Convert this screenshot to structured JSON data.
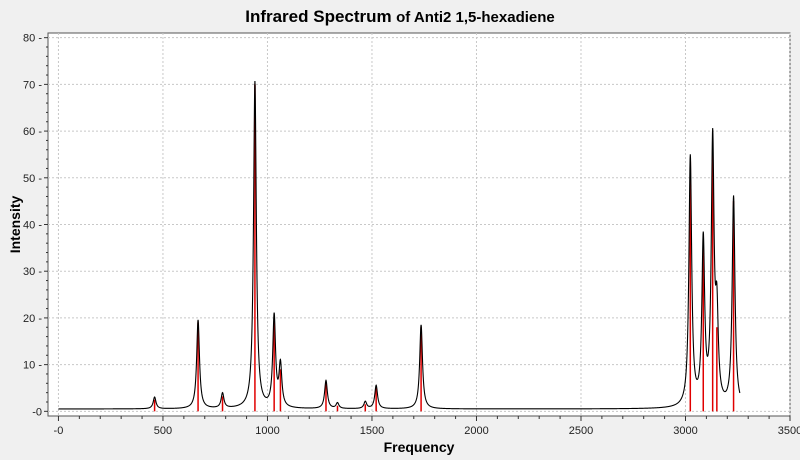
{
  "title_main": "Infrared Spectrum",
  "title_sub": "of Anti2 1,5-hexadiene",
  "chart_data": {
    "type": "line",
    "title": "Infrared Spectrum of Anti2 1,5-hexadiene",
    "xlabel": "Frequency",
    "ylabel": "Intensity",
    "xlim": [
      -50,
      3500
    ],
    "ylim": [
      -1,
      81
    ],
    "xticks": [
      0,
      500,
      1000,
      1500,
      2000,
      2500,
      3000,
      3500
    ],
    "xtick_labels": [
      "-0",
      "500",
      "1000",
      "1500",
      "2000",
      "2500",
      "3000",
      "3500"
    ],
    "yticks": [
      0,
      10,
      20,
      30,
      40,
      50,
      60,
      70,
      80
    ],
    "ytick_labels": [
      "-0",
      "10 -",
      "20 -",
      "30 -",
      "40 -",
      "50 -",
      "60 -",
      "70 -",
      "80 -"
    ],
    "grid": true,
    "stick_color": "#e00000",
    "curve_color": "#000000",
    "peaks": [
      {
        "x": 460,
        "y": 2.5
      },
      {
        "x": 668,
        "y": 19
      },
      {
        "x": 785,
        "y": 3.2
      },
      {
        "x": 940,
        "y": 70
      },
      {
        "x": 1032,
        "y": 19.5
      },
      {
        "x": 1062,
        "y": 9
      },
      {
        "x": 1280,
        "y": 6
      },
      {
        "x": 1335,
        "y": 1.2
      },
      {
        "x": 1468,
        "y": 1.5
      },
      {
        "x": 1520,
        "y": 5
      },
      {
        "x": 1735,
        "y": 18
      },
      {
        "x": 3023,
        "y": 53.5
      },
      {
        "x": 3085,
        "y": 35
      },
      {
        "x": 3130,
        "y": 56
      },
      {
        "x": 3150,
        "y": 18
      },
      {
        "x": 3230,
        "y": 45
      }
    ]
  }
}
